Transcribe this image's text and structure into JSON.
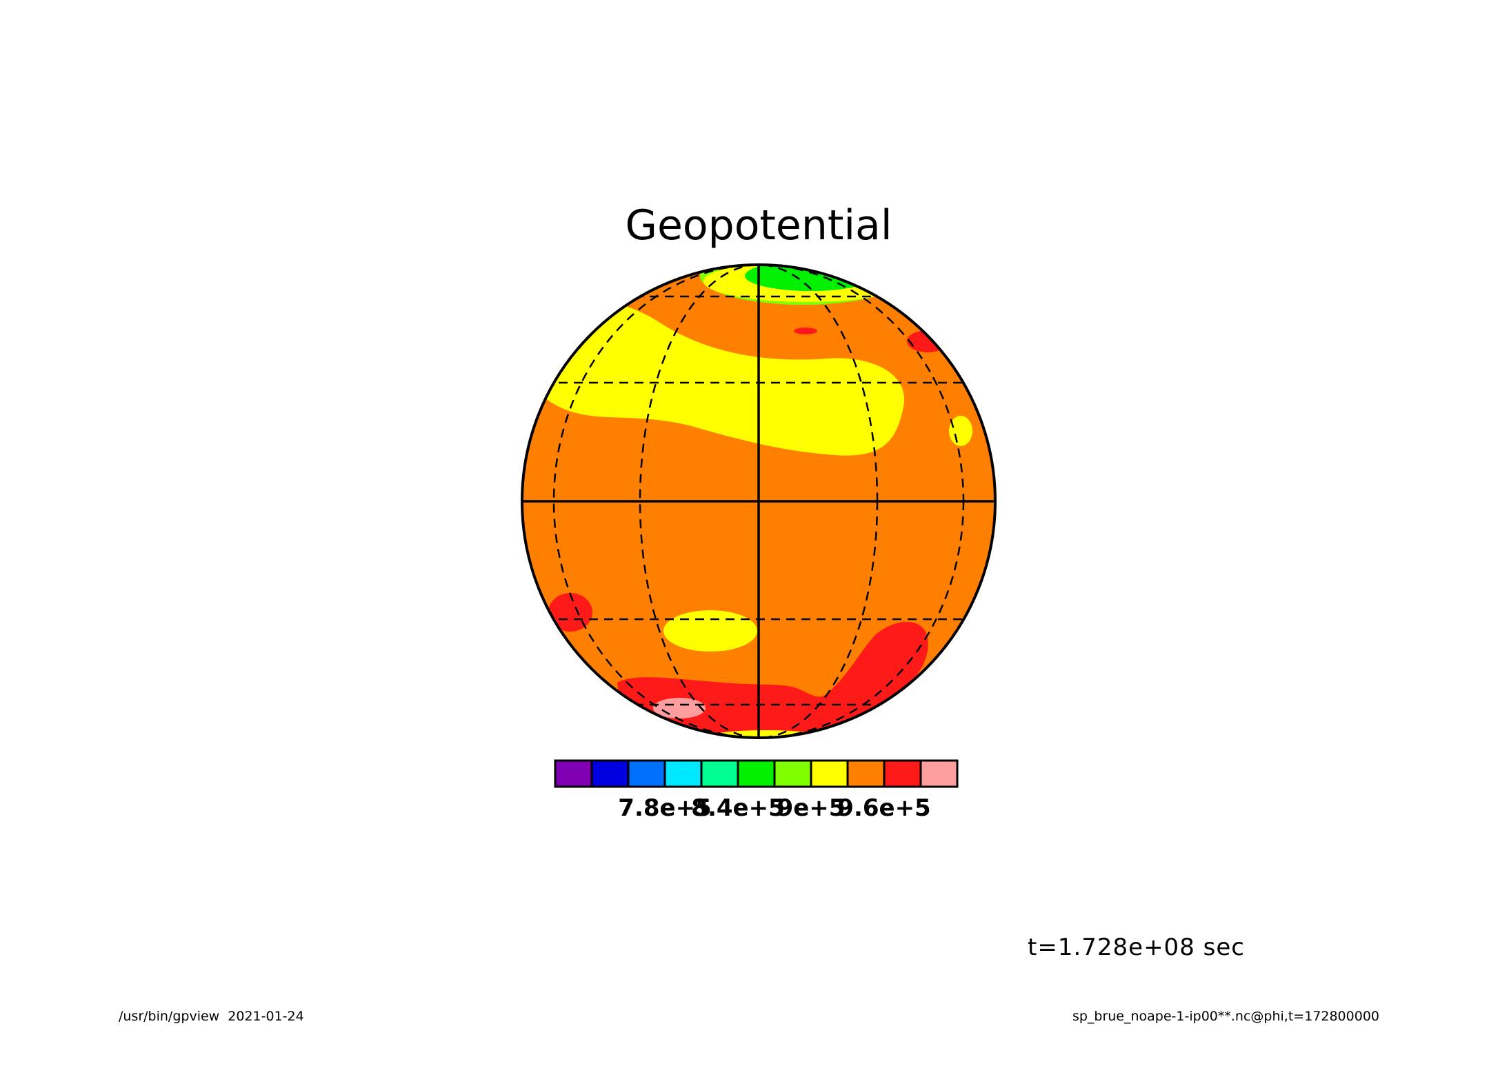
{
  "title": "Geopotential",
  "time_label": "t=1.728e+08 sec",
  "footer": {
    "left": "/usr/bin/gpview  2021-01-24",
    "right": "sp_brue_noape-1-ip00**.nc@phi,t=172800000"
  },
  "colorbar": {
    "colors": [
      "#7f00b2",
      "#0000e0",
      "#0070ff",
      "#00e8ff",
      "#00ff90",
      "#00f000",
      "#7fff00",
      "#ffff00",
      "#ff7f00",
      "#ff1a1a",
      "#ff9e9e"
    ],
    "tick_labels": [
      "7.8e+5",
      "8.4e+5",
      "9e+5",
      "9.6e+5"
    ]
  },
  "map": {
    "projection": "orthographic",
    "background_color": "#ff7f00",
    "field_colors": {
      "high": "#ff1a1a",
      "highest": "#ff9e9e",
      "yellow": "#ffff00",
      "green": "#00f000",
      "lightgreen": "#7fff00"
    }
  }
}
